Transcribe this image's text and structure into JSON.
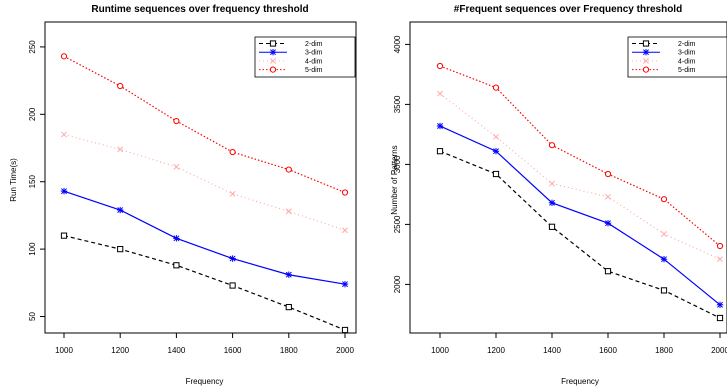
{
  "chart_data": [
    {
      "type": "line",
      "title": "Runtime sequences over frequency threshold",
      "xlabel": "Frequency",
      "ylabel": "Run Time(s)",
      "x": [
        1000,
        1200,
        1400,
        1600,
        1800,
        2000
      ],
      "xticks": [
        "1000",
        "1200",
        "1400",
        "1600",
        "1800",
        "2000"
      ],
      "yticks": [
        "50",
        "100",
        "150",
        "200",
        "250"
      ],
      "xlim": [
        1000,
        2000
      ],
      "ylim": [
        40,
        244
      ],
      "grid": false,
      "legend_position": "top-right",
      "series": [
        {
          "name": "2-dim",
          "values": [
            110,
            100,
            88,
            73,
            57,
            40
          ],
          "color": "#000000",
          "dash": "4,3",
          "marker": "square"
        },
        {
          "name": "3-dim",
          "values": [
            143,
            129,
            108,
            93,
            81,
            74
          ],
          "color": "#0000ff",
          "dash": "",
          "marker": "star"
        },
        {
          "name": "4-dim",
          "values": [
            185,
            174,
            161,
            141,
            128,
            114
          ],
          "color": "#ffaaaa",
          "dash": "1,3",
          "marker": "x"
        },
        {
          "name": "5-dim",
          "values": [
            243,
            221,
            195,
            172,
            159,
            142
          ],
          "color": "#ff0000",
          "dash": "1.5,2",
          "marker": "circle"
        }
      ]
    },
    {
      "type": "line",
      "title": "#Frequent sequences over Frequency threshold",
      "xlabel": "Frequency",
      "ylabel": "Number of Patterns",
      "x": [
        1000,
        1200,
        1400,
        1600,
        1800,
        2000
      ],
      "xticks": [
        "1000",
        "1200",
        "1400",
        "1600",
        "1800",
        "2000"
      ],
      "yticks": [
        "2000",
        "2500",
        "3000",
        "3500",
        "4000"
      ],
      "xlim": [
        1000,
        2000
      ],
      "ylim": [
        1720,
        3820
      ],
      "grid": false,
      "legend_position": "top-right",
      "series": [
        {
          "name": "2-dim",
          "values": [
            3110,
            2920,
            2480,
            2110,
            1950,
            1720
          ],
          "color": "#000000",
          "dash": "4,3",
          "marker": "square"
        },
        {
          "name": "3-dim",
          "values": [
            3320,
            3110,
            2680,
            2510,
            2210,
            1830
          ],
          "color": "#0000ff",
          "dash": "",
          "marker": "star"
        },
        {
          "name": "4-dim",
          "values": [
            3590,
            3230,
            2840,
            2730,
            2420,
            2210
          ],
          "color": "#ffaaaa",
          "dash": "1,3",
          "marker": "x"
        },
        {
          "name": "5-dim",
          "values": [
            3820,
            3640,
            3160,
            2920,
            2710,
            2320
          ],
          "color": "#ff0000",
          "dash": "1.5,2",
          "marker": "circle"
        }
      ]
    }
  ]
}
